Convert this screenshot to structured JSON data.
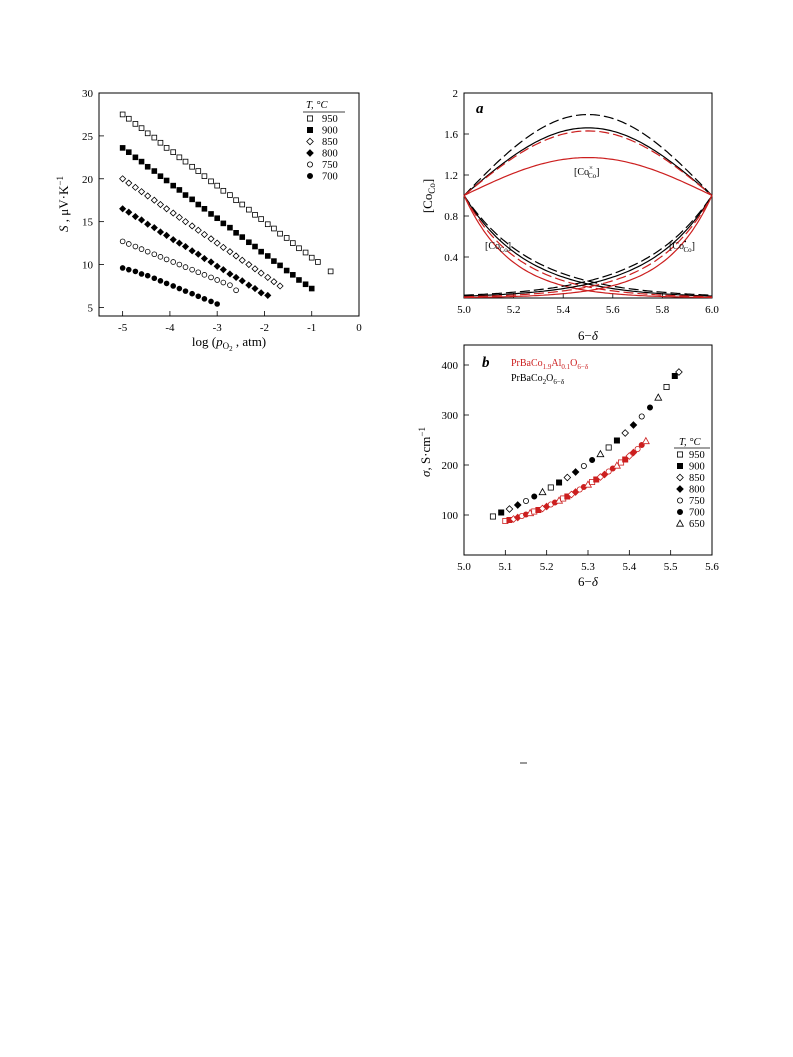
{
  "chart_data": [
    {
      "type": "scatter",
      "id": "left",
      "title": "",
      "xlabel": "log (pO2 , atm)",
      "ylabel": "S , μV·K−1",
      "xlim": [
        -5.5,
        0
      ],
      "ylim": [
        4,
        30
      ],
      "xticks": [
        "-5",
        "-4",
        "-3",
        "-2",
        "-1",
        "0"
      ],
      "yticks": [
        "5",
        "10",
        "15",
        "20",
        "25",
        "30"
      ],
      "legend_title": "T, °C",
      "legend_placement": "top-right",
      "series": [
        {
          "name": "950",
          "marker": "open-square",
          "x": [
            -5.0,
            -4.87,
            -4.73,
            -4.6,
            -4.47,
            -4.33,
            -4.2,
            -4.07,
            -3.93,
            -3.8,
            -3.67,
            -3.53,
            -3.4,
            -3.27,
            -3.13,
            -3.0,
            -2.87,
            -2.73,
            -2.6,
            -2.47,
            -2.33,
            -2.2,
            -2.07,
            -1.93,
            -1.8,
            -1.67,
            -1.53,
            -1.4,
            -1.27,
            -1.13,
            -1.0,
            -0.87,
            -0.6
          ],
          "y": [
            27.5,
            27.0,
            26.4,
            25.9,
            25.3,
            24.8,
            24.2,
            23.6,
            23.1,
            22.5,
            22.0,
            21.4,
            20.9,
            20.3,
            19.7,
            19.2,
            18.6,
            18.1,
            17.5,
            17.0,
            16.4,
            15.8,
            15.3,
            14.7,
            14.2,
            13.6,
            13.1,
            12.5,
            11.9,
            11.4,
            10.8,
            10.3,
            9.2
          ]
        },
        {
          "name": "900",
          "marker": "filled-square",
          "x": [
            -5.0,
            -4.87,
            -4.73,
            -4.6,
            -4.47,
            -4.33,
            -4.2,
            -4.07,
            -3.93,
            -3.8,
            -3.67,
            -3.53,
            -3.4,
            -3.27,
            -3.13,
            -3.0,
            -2.87,
            -2.73,
            -2.6,
            -2.47,
            -2.33,
            -2.2,
            -2.07,
            -1.93,
            -1.8,
            -1.67,
            -1.53,
            -1.4,
            -1.27,
            -1.13,
            -1.0
          ],
          "y": [
            23.6,
            23.1,
            22.5,
            22.0,
            21.4,
            20.9,
            20.3,
            19.8,
            19.2,
            18.7,
            18.1,
            17.6,
            17.0,
            16.5,
            15.9,
            15.4,
            14.8,
            14.3,
            13.7,
            13.2,
            12.6,
            12.1,
            11.5,
            11.0,
            10.4,
            9.9,
            9.3,
            8.8,
            8.2,
            7.7,
            7.2
          ]
        },
        {
          "name": "850",
          "marker": "open-diamond",
          "x": [
            -5.0,
            -4.87,
            -4.73,
            -4.6,
            -4.47,
            -4.33,
            -4.2,
            -4.07,
            -3.93,
            -3.8,
            -3.67,
            -3.53,
            -3.4,
            -3.27,
            -3.13,
            -3.0,
            -2.87,
            -2.73,
            -2.6,
            -2.47,
            -2.33,
            -2.2,
            -2.07,
            -1.93,
            -1.8,
            -1.67
          ],
          "y": [
            20.0,
            19.5,
            19.0,
            18.5,
            18.0,
            17.5,
            17.0,
            16.5,
            16.0,
            15.5,
            15.0,
            14.5,
            14.0,
            13.5,
            13.0,
            12.5,
            12.0,
            11.5,
            11.0,
            10.5,
            10.0,
            9.5,
            9.0,
            8.5,
            8.0,
            7.5
          ]
        },
        {
          "name": "800",
          "marker": "filled-diamond",
          "x": [
            -5.0,
            -4.87,
            -4.73,
            -4.6,
            -4.47,
            -4.33,
            -4.2,
            -4.07,
            -3.93,
            -3.8,
            -3.67,
            -3.53,
            -3.4,
            -3.27,
            -3.13,
            -3.0,
            -2.87,
            -2.73,
            -2.6,
            -2.47,
            -2.33,
            -2.2,
            -2.07,
            -1.93
          ],
          "y": [
            16.5,
            16.1,
            15.6,
            15.2,
            14.7,
            14.3,
            13.8,
            13.4,
            12.9,
            12.5,
            12.1,
            11.6,
            11.2,
            10.7,
            10.3,
            9.8,
            9.4,
            8.9,
            8.5,
            8.1,
            7.6,
            7.2,
            6.7,
            6.4
          ]
        },
        {
          "name": "750",
          "marker": "open-circle",
          "x": [
            -5.0,
            -4.87,
            -4.73,
            -4.6,
            -4.47,
            -4.33,
            -4.2,
            -4.07,
            -3.93,
            -3.8,
            -3.67,
            -3.53,
            -3.4,
            -3.27,
            -3.13,
            -3.0,
            -2.87,
            -2.73,
            -2.6
          ],
          "y": [
            12.7,
            12.4,
            12.1,
            11.8,
            11.5,
            11.2,
            10.9,
            10.6,
            10.3,
            10.0,
            9.7,
            9.4,
            9.1,
            8.8,
            8.5,
            8.2,
            7.9,
            7.6,
            7.0
          ]
        },
        {
          "name": "700",
          "marker": "filled-circle",
          "x": [
            -5.0,
            -4.87,
            -4.73,
            -4.6,
            -4.47,
            -4.33,
            -4.2,
            -4.07,
            -3.93,
            -3.8,
            -3.67,
            -3.53,
            -3.4,
            -3.27,
            -3.13,
            -3.0
          ],
          "y": [
            9.6,
            9.4,
            9.2,
            8.9,
            8.7,
            8.4,
            8.1,
            7.8,
            7.5,
            7.2,
            6.9,
            6.6,
            6.3,
            6.0,
            5.7,
            5.4
          ]
        }
      ]
    },
    {
      "type": "line",
      "id": "a",
      "panel_label": "a",
      "xlabel": "6−δ",
      "ylabel": "[CoCo]",
      "xlim": [
        5.0,
        6.0
      ],
      "ylim": [
        0,
        2
      ],
      "xticks": [
        "5.0",
        "5.2",
        "5.4",
        "5.6",
        "5.8",
        "6.0"
      ],
      "yticks": [
        "0.4",
        "0.8",
        "1.2",
        "1.6",
        "2"
      ],
      "annotations": [
        "[CoCo×]",
        "[CoCo′]",
        "[CoCo•]"
      ],
      "curves": [
        {
          "kind": "center",
          "peak": 1.79,
          "color": "#000000",
          "dash": "10,4"
        },
        {
          "kind": "center",
          "peak": 1.66,
          "color": "#000000",
          "dash": ""
        },
        {
          "kind": "center",
          "peak": 1.63,
          "color": "#cc1f1f",
          "dash": "10,4"
        },
        {
          "kind": "center",
          "peak": 1.37,
          "color": "#cc1f1f",
          "dash": ""
        },
        {
          "kind": "decay",
          "k": 0.62,
          "color": "#000000",
          "dash": "10,4"
        },
        {
          "kind": "decay",
          "k": 0.56,
          "color": "#000000",
          "dash": ""
        },
        {
          "kind": "decay",
          "k": 0.5,
          "color": "#cc1f1f",
          "dash": "10,4"
        },
        {
          "kind": "decay",
          "k": 0.42,
          "color": "#cc1f1f",
          "dash": ""
        },
        {
          "kind": "rise",
          "k": 0.62,
          "color": "#000000",
          "dash": "10,4"
        },
        {
          "kind": "rise",
          "k": 0.56,
          "color": "#000000",
          "dash": ""
        },
        {
          "kind": "rise",
          "k": 0.5,
          "color": "#cc1f1f",
          "dash": "10,4"
        },
        {
          "kind": "rise",
          "k": 0.42,
          "color": "#cc1f1f",
          "dash": ""
        }
      ]
    },
    {
      "type": "scatter",
      "id": "b",
      "panel_label": "b",
      "xlabel": "6−δ",
      "ylabel": "σ, S·cm−1",
      "xlim": [
        5.0,
        5.6
      ],
      "ylim": [
        20,
        440
      ],
      "xticks": [
        "5.0",
        "5.1",
        "5.2",
        "5.3",
        "5.4",
        "5.5",
        "5.6"
      ],
      "yticks": [
        "100",
        "200",
        "300",
        "400"
      ],
      "legend_title": "T, °C",
      "legend_entries": [
        {
          "label": "950",
          "marker": "open-square"
        },
        {
          "label": "900",
          "marker": "filled-square"
        },
        {
          "label": "850",
          "marker": "open-diamond"
        },
        {
          "label": "800",
          "marker": "filled-diamond"
        },
        {
          "label": "750",
          "marker": "open-circle"
        },
        {
          "label": "700",
          "marker": "filled-circle"
        },
        {
          "label": "650",
          "marker": "open-triangle"
        }
      ],
      "series": [
        {
          "name": "PrBaCo1.9Al0.1O6−δ",
          "color": "#cc1f1f",
          "x": [
            5.1,
            5.11,
            5.12,
            5.13,
            5.14,
            5.15,
            5.16,
            5.17,
            5.18,
            5.19,
            5.2,
            5.21,
            5.22,
            5.23,
            5.24,
            5.25,
            5.26,
            5.27,
            5.28,
            5.29,
            5.3,
            5.31,
            5.32,
            5.33,
            5.34,
            5.35,
            5.36,
            5.37,
            5.38,
            5.39,
            5.4,
            5.41,
            5.42,
            5.43,
            5.44
          ],
          "y": [
            88,
            90,
            92,
            95,
            98,
            101,
            104,
            107,
            110,
            113,
            117,
            121,
            125,
            129,
            133,
            137,
            141,
            146,
            151,
            156,
            161,
            166,
            171,
            176,
            181,
            187,
            193,
            199,
            205,
            211,
            218,
            225,
            232,
            240,
            248
          ]
        },
        {
          "name": "PrBaCo2O6−δ",
          "color": "#000000",
          "x": [
            5.07,
            5.09,
            5.11,
            5.13,
            5.15,
            5.17,
            5.19,
            5.21,
            5.23,
            5.25,
            5.27,
            5.29,
            5.31,
            5.33,
            5.35,
            5.37,
            5.39,
            5.41,
            5.43,
            5.45,
            5.47,
            5.49,
            5.51,
            5.52
          ],
          "y": [
            97,
            105,
            112,
            120,
            128,
            137,
            146,
            155,
            165,
            175,
            186,
            198,
            210,
            222,
            235,
            249,
            264,
            280,
            297,
            315,
            335,
            356,
            378,
            386
          ]
        }
      ]
    }
  ]
}
